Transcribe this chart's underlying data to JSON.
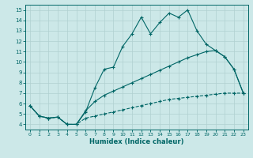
{
  "xlabel": "Humidex (Indice chaleur)",
  "bg_color": "#cce8e8",
  "line_color": "#006666",
  "grid_color": "#b0d0d0",
  "xlim": [
    -0.5,
    23.5
  ],
  "ylim": [
    3.5,
    15.5
  ],
  "xticks": [
    0,
    1,
    2,
    3,
    4,
    5,
    6,
    7,
    8,
    9,
    10,
    11,
    12,
    13,
    14,
    15,
    16,
    17,
    18,
    19,
    20,
    21,
    22,
    23
  ],
  "yticks": [
    4,
    5,
    6,
    7,
    8,
    9,
    10,
    11,
    12,
    13,
    14,
    15
  ],
  "curve1_x": [
    0,
    1,
    2,
    3,
    4,
    5,
    6,
    7,
    8,
    9,
    10,
    11,
    12,
    13,
    14,
    15,
    16,
    17,
    18,
    19,
    20,
    21,
    22,
    23
  ],
  "curve1_y": [
    5.8,
    4.8,
    4.6,
    4.7,
    4.0,
    4.0,
    5.2,
    7.5,
    9.3,
    9.5,
    11.5,
    12.7,
    14.3,
    12.7,
    13.8,
    14.7,
    14.3,
    15.0,
    13.0,
    11.7,
    11.1,
    10.5,
    9.3,
    7.0
  ],
  "curve2_x": [
    0,
    1,
    2,
    3,
    4,
    5,
    6,
    7,
    8,
    9,
    10,
    11,
    12,
    13,
    14,
    15,
    16,
    17,
    18,
    19,
    20,
    21,
    22,
    23
  ],
  "curve2_y": [
    5.8,
    4.8,
    4.6,
    4.7,
    4.0,
    4.0,
    5.3,
    6.2,
    6.8,
    7.2,
    7.6,
    8.0,
    8.4,
    8.8,
    9.2,
    9.6,
    10.0,
    10.4,
    10.7,
    11.0,
    11.1,
    10.5,
    9.3,
    7.0
  ],
  "curve3_x": [
    0,
    1,
    2,
    3,
    4,
    5,
    6,
    7,
    8,
    9,
    10,
    11,
    12,
    13,
    14,
    15,
    16,
    17,
    18,
    19,
    20,
    21,
    22,
    23
  ],
  "curve3_y": [
    5.8,
    4.8,
    4.6,
    4.7,
    4.0,
    4.0,
    4.6,
    4.8,
    5.0,
    5.2,
    5.4,
    5.6,
    5.8,
    6.0,
    6.2,
    6.4,
    6.5,
    6.6,
    6.7,
    6.8,
    6.9,
    7.0,
    7.0,
    7.0
  ]
}
